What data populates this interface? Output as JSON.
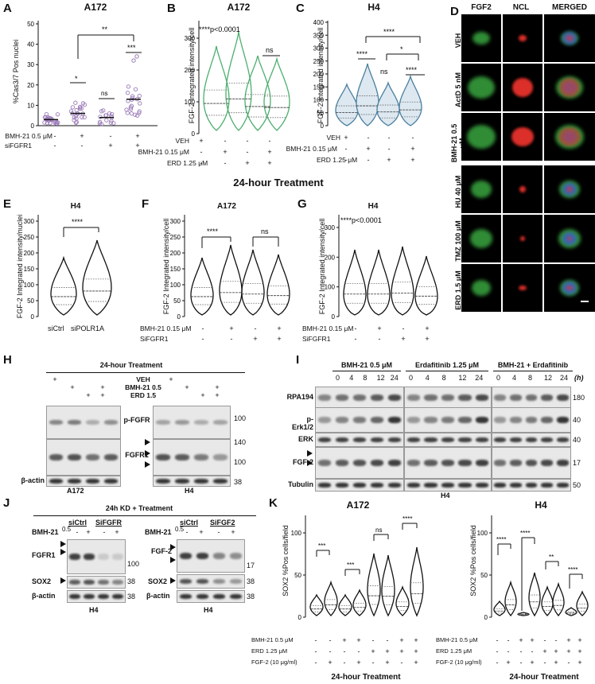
{
  "panels": {
    "A": {
      "letter": "A",
      "title": "A172",
      "ylabel": "%Cas3/7 Pos nuclei",
      "yticks": [
        "0",
        "10",
        "20",
        "30",
        "40",
        "50"
      ],
      "rows": [
        {
          "label": "BMH-21 0.5 μM",
          "signs": [
            "-",
            "+",
            "-",
            "+"
          ]
        },
        {
          "label": "siFGFR1",
          "signs": [
            "-",
            "-",
            "+",
            "+"
          ]
        }
      ],
      "sig": [
        "*",
        "ns",
        "***",
        "**"
      ]
    },
    "B": {
      "letter": "B",
      "title": "A172",
      "ylabel": "FGF-2 Integrated intensity/cell",
      "yticks": [
        "0",
        "100",
        "200",
        "300"
      ],
      "note": "****p<0.0001",
      "sig": [
        "ns"
      ],
      "rows": [
        {
          "label": "VEH",
          "signs": [
            "+",
            "-",
            "-",
            "-"
          ]
        },
        {
          "label": "BMH-21 0.15 μM",
          "signs": [
            "-",
            "+",
            "-",
            "+"
          ]
        },
        {
          "label": "ERD 1.25 μM",
          "signs": [
            "-",
            "-",
            "+",
            "+"
          ]
        }
      ]
    },
    "C": {
      "letter": "C",
      "title": "H4",
      "ylabel": "FGF-2 Integrated intensity/cell",
      "yticks": [
        "0",
        "50",
        "100",
        "150",
        "200",
        "250",
        "300",
        "350",
        "400"
      ],
      "sig": [
        "****",
        "****",
        "*",
        "ns",
        "****"
      ],
      "rows": [
        {
          "label": "VEH",
          "signs": [
            "+",
            "-",
            "-",
            "-"
          ]
        },
        {
          "label": "BMH-21 0.15 μM",
          "signs": [
            "-",
            "+",
            "-",
            "+"
          ]
        },
        {
          "label": "ERD 1.25 μM",
          "signs": [
            "-",
            "-",
            "+",
            "+"
          ]
        }
      ]
    },
    "D": {
      "letter": "D",
      "cols": [
        "FGF2",
        "NCL",
        "MERGED"
      ],
      "rows": [
        "VEH",
        "ActD 5 nM",
        "BMH-21 0.5 μM",
        "HU 40 μM",
        "TMZ 100 μM",
        "ERD 1.5 μM"
      ]
    },
    "center": {
      "treatment": "24-hour Treatment"
    },
    "E": {
      "letter": "E",
      "title": "H4",
      "ylabel": "FGF-2 Integrated intensity/nuclei",
      "yticks": [
        "0",
        "50",
        "100",
        "150",
        "200",
        "250",
        "300"
      ],
      "xlabels": [
        "siCtrl",
        "siPOLR1A"
      ],
      "sig": [
        "****"
      ]
    },
    "F": {
      "letter": "F",
      "title": "A172",
      "ylabel": "FGF-2 Integrated intensity/cell",
      "yticks": [
        "0",
        "50",
        "100",
        "150",
        "200",
        "250",
        "300"
      ],
      "sig": [
        "****",
        "ns"
      ],
      "rows": [
        {
          "label": "BMH-21 0.15 μM",
          "signs": [
            "-",
            "+",
            "-",
            "+"
          ]
        },
        {
          "label": "SiFGFR1",
          "signs": [
            "-",
            "-",
            "+",
            "+"
          ]
        }
      ]
    },
    "G": {
      "letter": "G",
      "title": "H4",
      "ylabel": "FGF-2 Integrated intensity/cell",
      "yticks": [
        "0",
        "100",
        "200",
        "300"
      ],
      "note": "****p<0.0001",
      "rows": [
        {
          "label": "BMH-21 0.15 μM",
          "signs": [
            "-",
            "+",
            "-",
            "+"
          ]
        },
        {
          "label": "SiFGFR1",
          "signs": [
            "-",
            "-",
            "+",
            "+"
          ]
        }
      ]
    },
    "H": {
      "letter": "H",
      "header": "24-hour Treatment",
      "treat_rows": [
        {
          "label": "VEH",
          "signs": [
            "+",
            "",
            "",
            ""
          ]
        },
        {
          "label": "BMH-21 0.5",
          "signs": [
            "",
            "+",
            "",
            "+"
          ]
        },
        {
          "label": "ERD 1.5",
          "signs": [
            "",
            "",
            "+",
            "+"
          ]
        }
      ],
      "blots": [
        "p-FGFR",
        "FGFR1",
        "β-actin"
      ],
      "mw": [
        "100",
        "140",
        "100",
        "38"
      ],
      "cells": [
        "A172",
        "H4"
      ]
    },
    "I": {
      "letter": "I",
      "groups": [
        "BMH-21 0.5 μM",
        "Erdafitinib 1.25 μM",
        "BMH-21 + Erdafitinib"
      ],
      "times": [
        "0",
        "4",
        "8",
        "12",
        "24"
      ],
      "time_unit": "(h)",
      "blots": [
        "RPA194",
        "p-Erk1/2",
        "ERK",
        "FGF-2",
        "Tubulin"
      ],
      "mw": [
        "180",
        "40",
        "40",
        "17",
        "50"
      ],
      "cell": "H4"
    },
    "J": {
      "letter": "J",
      "header": "24h KD + Treatment",
      "left": {
        "groups": [
          "siCtrl",
          "SiFGFR"
        ],
        "treat": "BMH-21",
        "treat_sup": "0.5",
        "signs": [
          "-",
          "+",
          "-",
          "+"
        ],
        "blots": [
          "FGFR1",
          "SOX2",
          "β-actin"
        ],
        "mw": [
          "100",
          "38",
          "38"
        ],
        "cell": "H4"
      },
      "right": {
        "groups": [
          "siCtrl",
          "SiFGF2"
        ],
        "treat": "BMH-21",
        "treat_sup": "0.5",
        "signs": [
          "-",
          "+",
          "-",
          "+"
        ],
        "blots": [
          "FGF-2",
          "SOX2",
          "β-actin"
        ],
        "mw": [
          "17",
          "38",
          "38"
        ],
        "cell": "H4"
      }
    },
    "K": {
      "letter": "K",
      "left": {
        "title": "A172",
        "sig": [
          "***",
          "***",
          "ns",
          "****"
        ]
      },
      "right": {
        "title": "H4",
        "sig": [
          "****",
          "****",
          "**",
          "****"
        ]
      },
      "ylabel": "SOX2 %Pos cells/field",
      "yticks": [
        "0",
        "50",
        "100"
      ],
      "rows": [
        {
          "label": "BMH-21 0.5 μM",
          "signs": [
            "-",
            "-",
            "+",
            "+",
            "-",
            "-",
            "+",
            "+"
          ]
        },
        {
          "label": "ERD 1.25 μM",
          "signs": [
            "-",
            "-",
            "-",
            "-",
            "+",
            "+",
            "+",
            "+"
          ]
        },
        {
          "label": "FGF-2 (10 μg/ml)",
          "signs": [
            "-",
            "+",
            "-",
            "+",
            "-",
            "+",
            "-",
            "+"
          ]
        }
      ],
      "footer": "24-hour Treatment"
    }
  },
  "colors": {
    "violin_green": "#4caf6e",
    "violin_blue": "#4a7fa0",
    "scatter_purple": "#9b7bb8",
    "fgf2": "#3cb043",
    "ncl": "#e8322c",
    "dapi": "#3b5bd6"
  }
}
